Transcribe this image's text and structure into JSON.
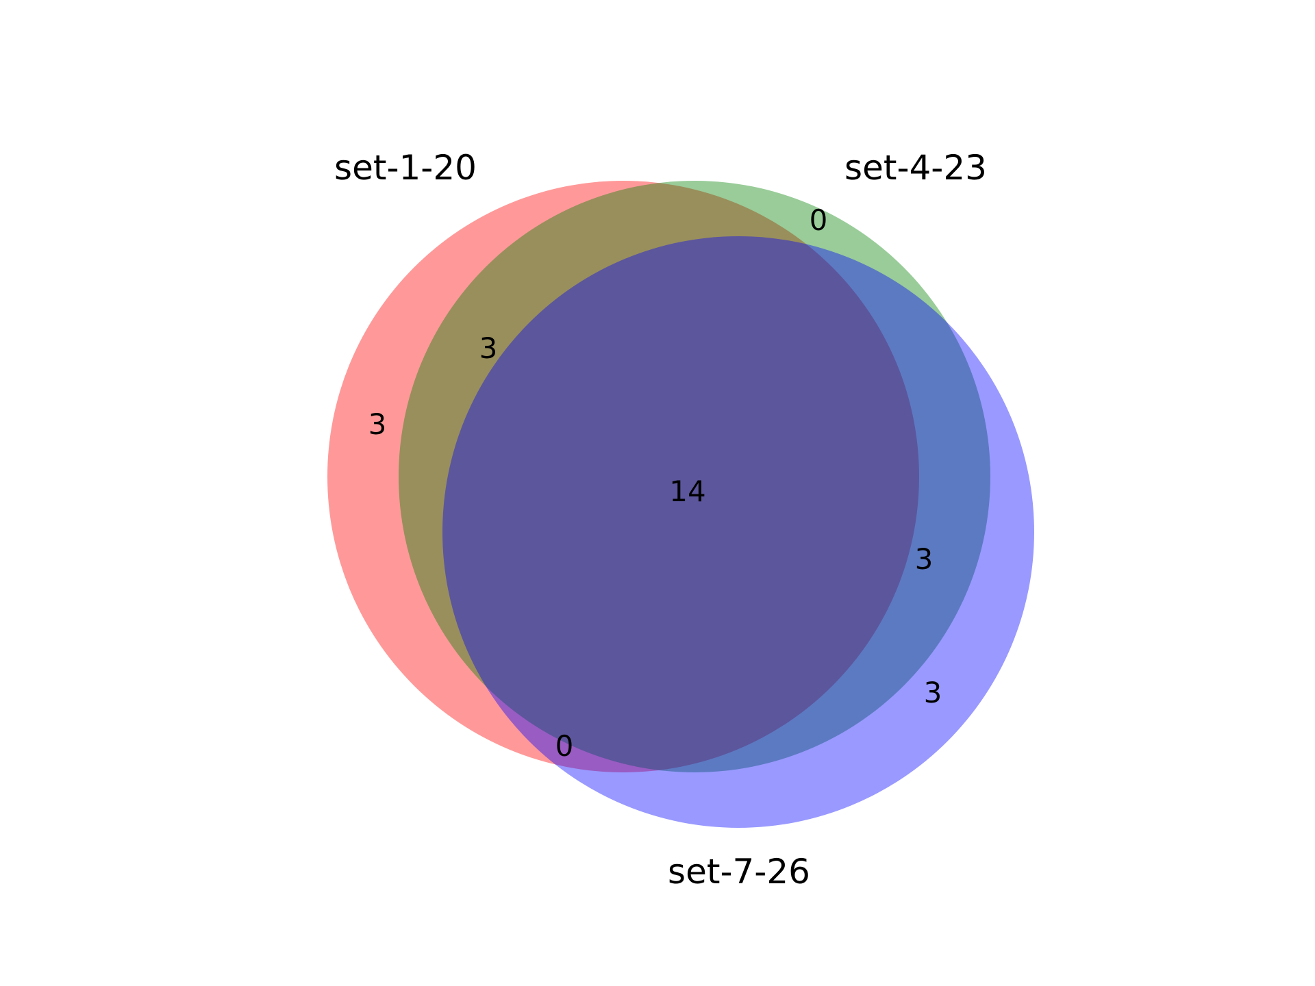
{
  "venn": {
    "sets": [
      {
        "key": "A",
        "name": "set-1-20",
        "color": "#ff0000"
      },
      {
        "key": "B",
        "name": "set-4-23",
        "color": "#008000"
      },
      {
        "key": "C",
        "name": "set-7-26",
        "color": "#0000ff"
      }
    ],
    "opacity": 0.4,
    "regions": {
      "A_only": "3",
      "B_only": "0",
      "C_only": "3",
      "AB_only": "3",
      "AC_only": "0",
      "BC_only": "3",
      "ABC": "14"
    }
  }
}
